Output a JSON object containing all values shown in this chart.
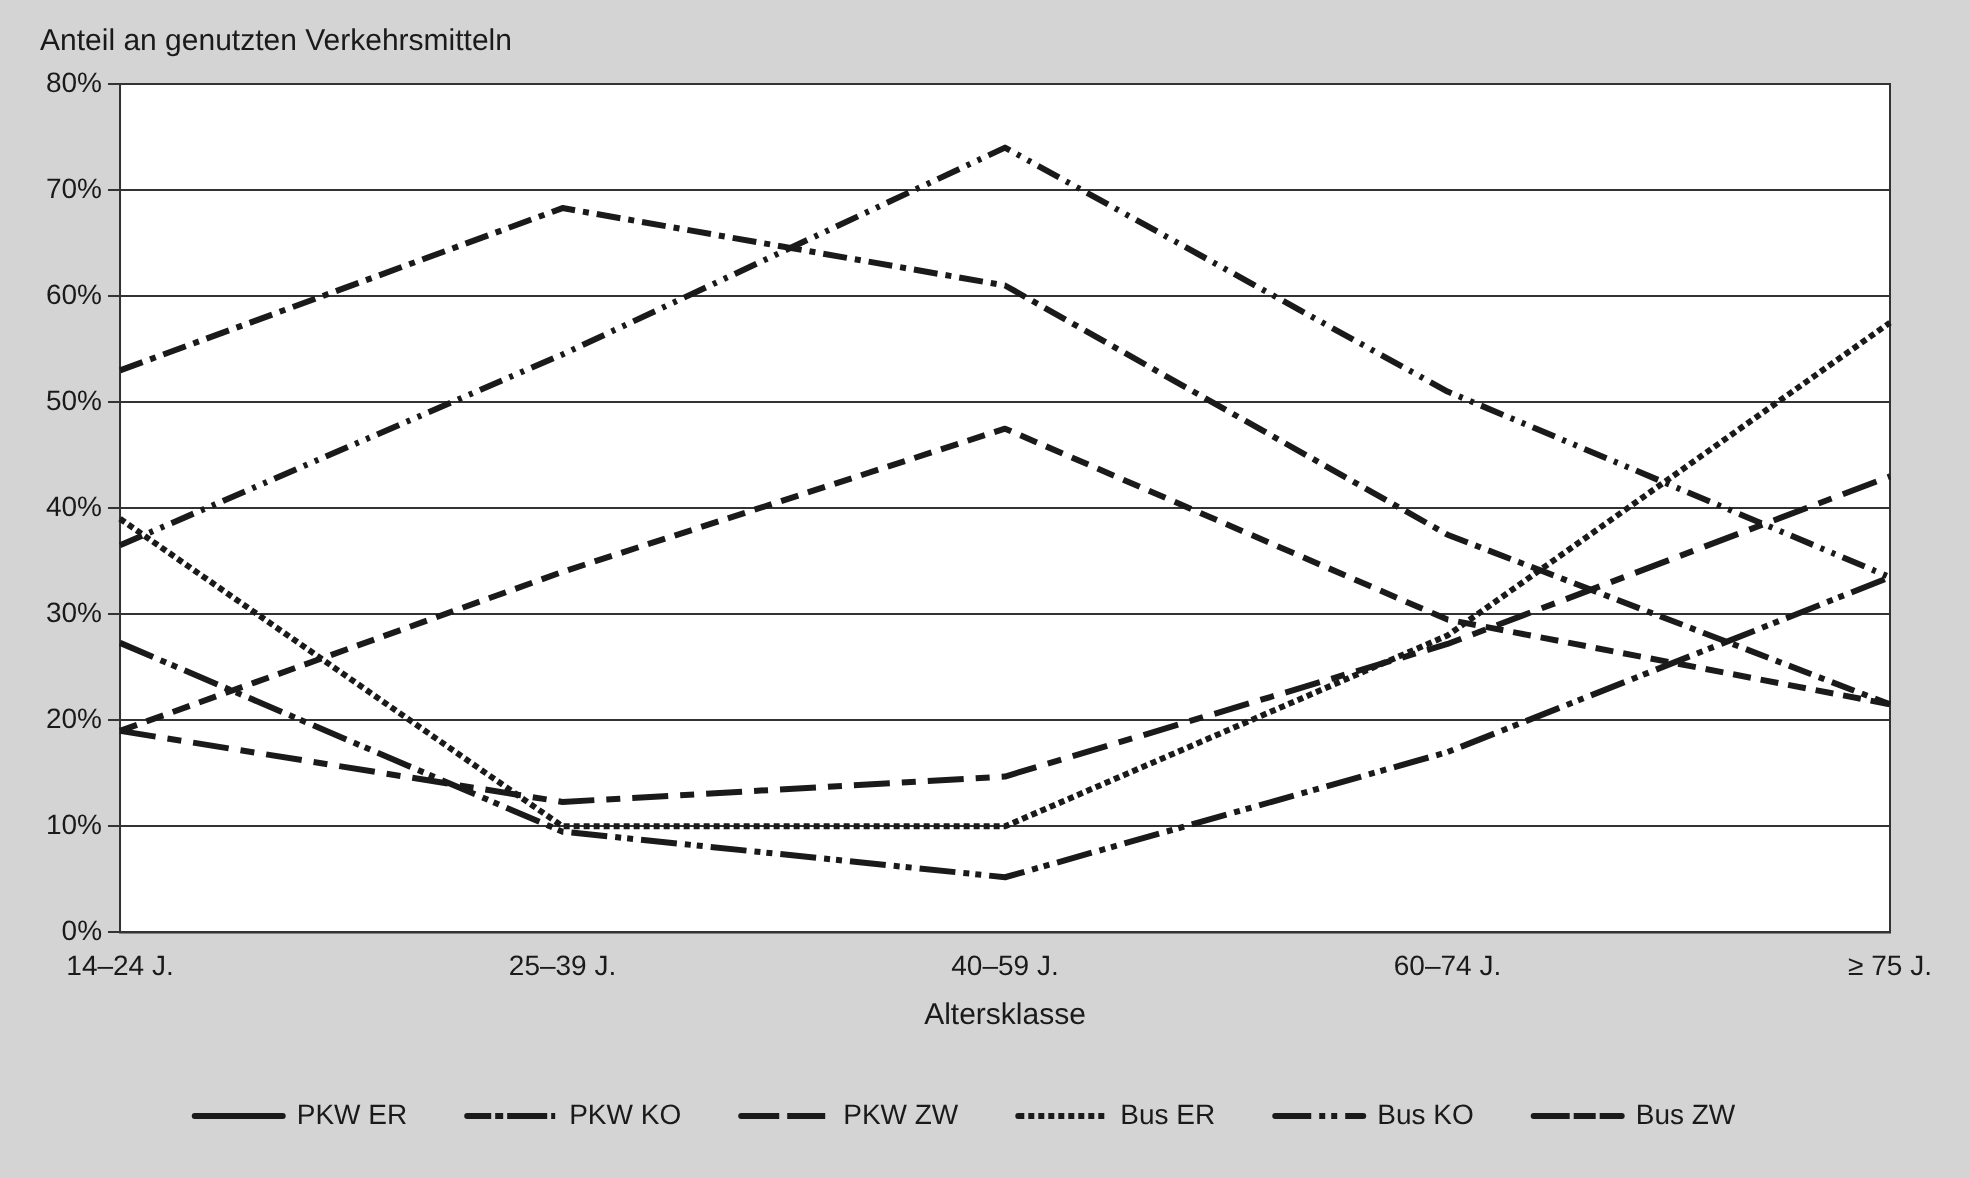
{
  "chart_data": {
    "type": "line",
    "title": "Anteil an genutzten Verkehrsmitteln",
    "xlabel": "Altersklasse",
    "categories": [
      "14–24 J.",
      "25–39 J.",
      "40–59 J.",
      "60–74 J.",
      "≥ 75 J."
    ],
    "series": [
      {
        "name": "PKW ER",
        "color": "#1a1a1a",
        "line_style": "dashed",
        "values": [
          19,
          34,
          47.5,
          29.5,
          21.5
        ]
      },
      {
        "name": "PKW KO",
        "color": "#1a1a1a",
        "line_style": "dashed",
        "values": [
          36.5,
          54.5,
          74,
          51,
          33.5
        ]
      },
      {
        "name": "PKW ZW",
        "color": "#1a1a1a",
        "line_style": "dashed",
        "values": [
          53,
          68.3,
          61,
          37.5,
          21.5
        ]
      },
      {
        "name": "Bus ER",
        "color": "#1a1a1a",
        "line_style": "dotted",
        "values": [
          39,
          10,
          10,
          28,
          57.5
        ]
      },
      {
        "name": "Bus KO",
        "color": "#1a1a1a",
        "line_style": "dashed",
        "values": [
          27.3,
          9.5,
          5.2,
          17,
          33.5
        ]
      },
      {
        "name": "Bus ZW",
        "color": "#1a1a1a",
        "line_style": "dashed",
        "values": [
          19,
          12.3,
          14.7,
          27.2,
          43
        ]
      }
    ],
    "ylim": [
      0,
      80
    ],
    "yticks": [
      {
        "value": 0,
        "label": "0%"
      },
      {
        "value": 10,
        "label": "10%"
      },
      {
        "value": 20,
        "label": "20%"
      },
      {
        "value": 30,
        "label": "30%"
      },
      {
        "value": 40,
        "label": "40%"
      },
      {
        "value": 50,
        "label": "50%"
      },
      {
        "value": 60,
        "label": "60%"
      },
      {
        "value": 70,
        "label": "70%"
      },
      {
        "value": 80,
        "label": "80%"
      }
    ],
    "grid": "y",
    "legend": "bottom",
    "marker": "none"
  }
}
